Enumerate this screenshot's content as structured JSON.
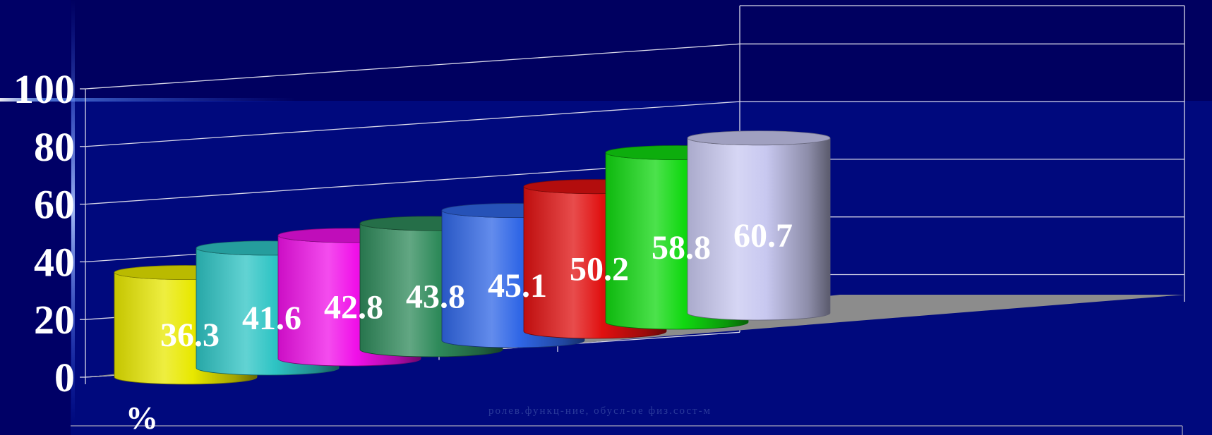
{
  "chart_data": {
    "type": "bar",
    "values": [
      36.3,
      41.6,
      42.8,
      43.8,
      45.1,
      50.2,
      58.8,
      60.7
    ],
    "data_labels": [
      "36.3",
      "41.6",
      "42.8",
      "43.8",
      "45.1",
      "50.2",
      "58.8",
      "60.7"
    ],
    "colors": [
      "#e8e800",
      "#2ec4c4",
      "#f010e8",
      "#2e8a5a",
      "#2f66e6",
      "#e01010",
      "#10d810",
      "#c8c8f0"
    ],
    "ylim": [
      0,
      100
    ],
    "yticks": [
      0,
      20,
      40,
      60,
      80,
      100
    ],
    "ytick_labels": [
      "0",
      "20",
      "40",
      "60",
      "80",
      "100"
    ],
    "ylabel": "%",
    "xlabel": "ролев.функц-ние, обусл-ое физ.сост-м",
    "grid": true,
    "style": "3d-cylinder",
    "background": "#000066"
  }
}
